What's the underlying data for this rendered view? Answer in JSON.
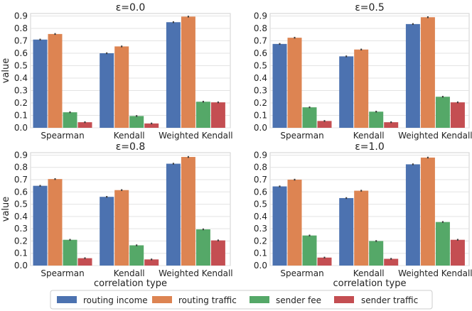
{
  "chart_data": [
    {
      "type": "bar",
      "title": "ε=0.0",
      "categories": [
        "Spearman",
        "Kendall",
        "Weighted Kendall"
      ],
      "ylabel": "value",
      "xlabel": "",
      "ylim": [
        0,
        0.92
      ],
      "yticks": [
        "0.0",
        "0.1",
        "0.2",
        "0.3",
        "0.4",
        "0.5",
        "0.6",
        "0.7",
        "0.8",
        "0.9"
      ],
      "series": [
        {
          "name": "routing income",
          "values": [
            0.71,
            0.6,
            0.85
          ]
        },
        {
          "name": "routing traffic",
          "values": [
            0.755,
            0.655,
            0.895
          ]
        },
        {
          "name": "sender fee",
          "values": [
            0.125,
            0.095,
            0.21
          ]
        },
        {
          "name": "sender traffic",
          "values": [
            0.045,
            0.035,
            0.205
          ]
        }
      ]
    },
    {
      "type": "bar",
      "title": "ε=0.5",
      "categories": [
        "Spearman",
        "Kendall",
        "Weighted Kendall"
      ],
      "ylabel": "",
      "xlabel": "",
      "ylim": [
        0,
        0.92
      ],
      "yticks": [
        "0.0",
        "0.1",
        "0.2",
        "0.3",
        "0.4",
        "0.5",
        "0.6",
        "0.7",
        "0.8",
        "0.9"
      ],
      "series": [
        {
          "name": "routing income",
          "values": [
            0.675,
            0.575,
            0.835
          ]
        },
        {
          "name": "routing traffic",
          "values": [
            0.725,
            0.63,
            0.89
          ]
        },
        {
          "name": "sender fee",
          "values": [
            0.165,
            0.13,
            0.25
          ]
        },
        {
          "name": "sender traffic",
          "values": [
            0.055,
            0.045,
            0.205
          ]
        }
      ]
    },
    {
      "type": "bar",
      "title": "ε=0.8",
      "categories": [
        "Spearman",
        "Kendall",
        "Weighted Kendall"
      ],
      "ylabel": "value",
      "xlabel": "correlation type",
      "ylim": [
        0,
        0.92
      ],
      "yticks": [
        "0.0",
        "0.1",
        "0.2",
        "0.3",
        "0.4",
        "0.5",
        "0.6",
        "0.7",
        "0.8",
        "0.9"
      ],
      "series": [
        {
          "name": "routing income",
          "values": [
            0.65,
            0.56,
            0.83
          ]
        },
        {
          "name": "routing traffic",
          "values": [
            0.705,
            0.615,
            0.885
          ]
        },
        {
          "name": "sender fee",
          "values": [
            0.21,
            0.165,
            0.295
          ]
        },
        {
          "name": "sender traffic",
          "values": [
            0.06,
            0.05,
            0.205
          ]
        }
      ]
    },
    {
      "type": "bar",
      "title": "ε=1.0",
      "categories": [
        "Spearman",
        "Kendall",
        "Weighted Kendall"
      ],
      "ylabel": "",
      "xlabel": "correlation type",
      "ylim": [
        0,
        0.92
      ],
      "yticks": [
        "0.0",
        "0.1",
        "0.2",
        "0.3",
        "0.4",
        "0.5",
        "0.6",
        "0.7",
        "0.8",
        "0.9"
      ],
      "series": [
        {
          "name": "routing income",
          "values": [
            0.645,
            0.55,
            0.825
          ]
        },
        {
          "name": "routing traffic",
          "values": [
            0.7,
            0.61,
            0.88
          ]
        },
        {
          "name": "sender fee",
          "values": [
            0.245,
            0.2,
            0.355
          ]
        },
        {
          "name": "sender traffic",
          "values": [
            0.065,
            0.055,
            0.21
          ]
        }
      ]
    }
  ],
  "legend": [
    {
      "label": "routing income",
      "color": "#4c72b0"
    },
    {
      "label": "routing traffic",
      "color": "#dd8452"
    },
    {
      "label": "sender fee",
      "color": "#55a868"
    },
    {
      "label": "sender traffic",
      "color": "#c44e52"
    }
  ],
  "colors": [
    "#4c72b0",
    "#dd8452",
    "#55a868",
    "#c44e52"
  ]
}
